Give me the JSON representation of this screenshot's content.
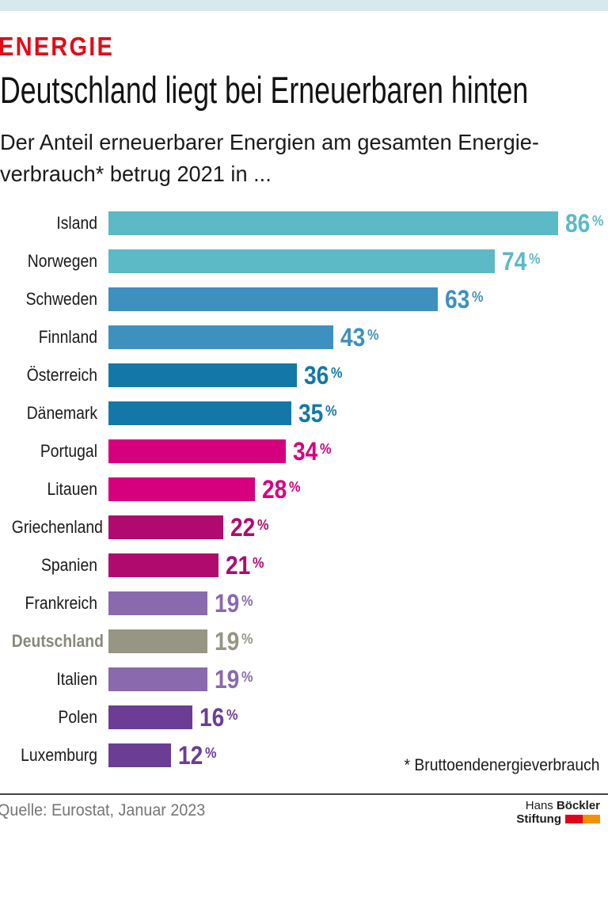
{
  "page": {
    "kicker": "ENERGIE",
    "title": "Deutschland liegt bei Erneuerbaren hinten",
    "subtitle": "Der Anteil erneuerbarer Energien am gesamten Energie-\nverbrauch* betrug 2021 in ...",
    "footnote": "* Bruttoendenergieverbrauch",
    "source": "Quelle: Eurostat, Januar 2023",
    "logo": {
      "line1_regular": "Hans ",
      "line1_bold": "Böckler",
      "line2_bold": "Stiftung"
    }
  },
  "colors": {
    "top_bar": "#d7e8ef",
    "kicker_red": "#e30b17",
    "teal": "#5cb9c6",
    "blue": "#3e90bf",
    "dark_blue": "#1378a7",
    "magenta": "#d6007e",
    "dark_magenta": "#b10a6e",
    "light_purple": "#8a69ae",
    "highlight_gray": "#979584",
    "dark_purple": "#6b3d95",
    "logo_red": "#e2001a",
    "logo_orange": "#f39200"
  },
  "chart_data": {
    "type": "bar",
    "orientation": "horizontal",
    "title": "Deutschland liegt bei Erneuerbaren hinten",
    "subtitle": "Der Anteil erneuerbarer Energien am gesamten Energieverbrauch* betrug 2021 in ...",
    "unit": "%",
    "xlim": [
      0,
      100
    ],
    "grid": false,
    "legend": false,
    "categories": [
      "Island",
      "Norwegen",
      "Schweden",
      "Finnland",
      "Österreich",
      "Dänemark",
      "Portugal",
      "Litauen",
      "Griechenland",
      "Spanien",
      "Frankreich",
      "Deutschland",
      "Italien",
      "Polen",
      "Luxemburg"
    ],
    "values": [
      86,
      74,
      63,
      43,
      36,
      35,
      34,
      28,
      22,
      21,
      19,
      19,
      19,
      16,
      12
    ],
    "bar_colors": [
      "#5cb9c6",
      "#5cb9c6",
      "#3e90bf",
      "#3e90bf",
      "#1378a7",
      "#1378a7",
      "#d6007e",
      "#d6007e",
      "#b10a6e",
      "#b10a6e",
      "#8a69ae",
      "#979584",
      "#8a69ae",
      "#6b3d95",
      "#6b3d95"
    ],
    "highlight_index": 11,
    "highlight_label": "Deutschland"
  }
}
